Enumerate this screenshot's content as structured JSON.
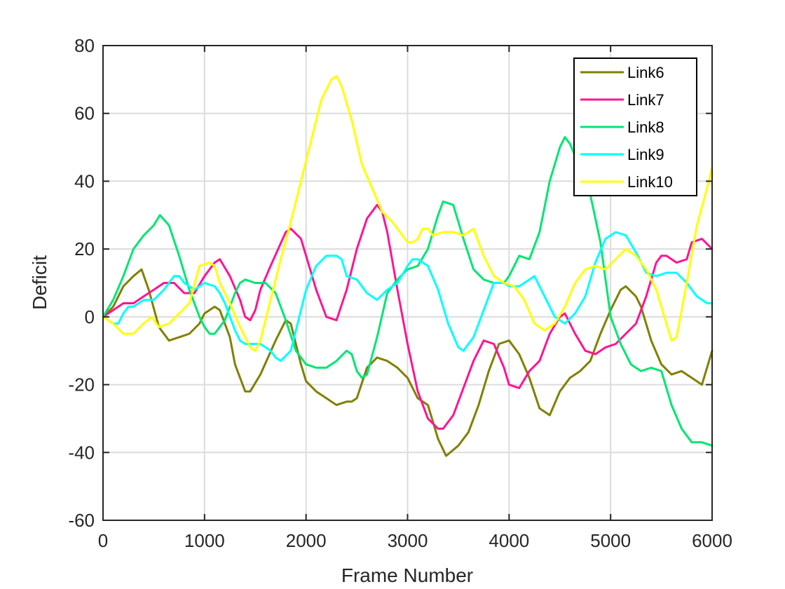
{
  "chart_data": {
    "type": "line",
    "title": "",
    "xlabel": "Frame Number",
    "ylabel": "Deficit",
    "xlim": [
      0,
      6000
    ],
    "ylim": [
      -60,
      80
    ],
    "xticks": [
      0,
      1000,
      2000,
      3000,
      4000,
      5000,
      6000
    ],
    "yticks": [
      -60,
      -40,
      -20,
      0,
      20,
      40,
      60,
      80
    ],
    "grid": true,
    "legend_position": "top-right",
    "series": [
      {
        "name": "Link6",
        "color": "#808000",
        "x": [
          0,
          100,
          200,
          300,
          380,
          450,
          550,
          650,
          750,
          850,
          950,
          1000,
          1100,
          1150,
          1250,
          1300,
          1400,
          1450,
          1550,
          1700,
          1800,
          1850,
          1950,
          2000,
          2100,
          2200,
          2300,
          2400,
          2450,
          2500,
          2600,
          2700,
          2800,
          2900,
          3000,
          3100,
          3200,
          3300,
          3380,
          3500,
          3600,
          3700,
          3800,
          3900,
          4000,
          4100,
          4200,
          4300,
          4400,
          4500,
          4600,
          4700,
          4800,
          4900,
          5000,
          5100,
          5150,
          5250,
          5300,
          5400,
          5500,
          5600,
          5700,
          5800,
          5900,
          6000
        ],
        "values": [
          0,
          3,
          9,
          12,
          14,
          8,
          -3,
          -7,
          -6,
          -5,
          -2,
          1,
          3,
          2,
          -6,
          -14,
          -22,
          -22,
          -17,
          -7,
          -1,
          -2,
          -14,
          -19,
          -22,
          -24,
          -26,
          -25,
          -25,
          -24,
          -15,
          -12,
          -13,
          -15,
          -18,
          -24,
          -26,
          -36,
          -41,
          -38,
          -34,
          -26,
          -16,
          -8,
          -7,
          -11,
          -18,
          -27,
          -29,
          -22,
          -18,
          -16,
          -13,
          -5,
          2,
          8,
          9,
          6,
          3,
          -7,
          -14,
          -17,
          -16,
          -18,
          -20,
          -10
        ]
      },
      {
        "name": "Link7",
        "color": "#ff1493",
        "x": [
          0,
          100,
          200,
          300,
          400,
          500,
          600,
          700,
          800,
          900,
          1000,
          1100,
          1150,
          1250,
          1350,
          1400,
          1450,
          1500,
          1550,
          1650,
          1800,
          1850,
          1950,
          2000,
          2100,
          2200,
          2300,
          2400,
          2500,
          2600,
          2700,
          2750,
          2800,
          2900,
          3000,
          3100,
          3200,
          3300,
          3350,
          3450,
          3550,
          3650,
          3750,
          3850,
          3950,
          4000,
          4100,
          4200,
          4300,
          4400,
          4500,
          4550,
          4650,
          4750,
          4850,
          4950,
          5050,
          5150,
          5250,
          5350,
          5450,
          5500,
          5550,
          5650,
          5750,
          5800,
          5900,
          6000
        ],
        "values": [
          0,
          2,
          4,
          4,
          6,
          8,
          10,
          10,
          7,
          7,
          12,
          16,
          17,
          12,
          5,
          0,
          -1,
          2,
          8,
          15,
          25,
          26,
          23,
          18,
          8,
          0,
          -1,
          8,
          20,
          29,
          33,
          31,
          25,
          8,
          -8,
          -22,
          -30,
          -33,
          -33,
          -29,
          -21,
          -13,
          -7,
          -8,
          -15,
          -20,
          -21,
          -16,
          -13,
          -5,
          0,
          1,
          -5,
          -10,
          -11,
          -9,
          -8,
          -5,
          -2,
          6,
          16,
          18,
          18,
          16,
          17,
          22,
          23,
          20
        ]
      },
      {
        "name": "Link8",
        "color": "#00e673",
        "x": [
          0,
          100,
          200,
          300,
          400,
          500,
          560,
          650,
          750,
          850,
          950,
          1000,
          1050,
          1100,
          1200,
          1300,
          1350,
          1400,
          1500,
          1600,
          1700,
          1800,
          1900,
          2000,
          2100,
          2200,
          2300,
          2400,
          2450,
          2500,
          2550,
          2600,
          2700,
          2800,
          2900,
          3000,
          3100,
          3200,
          3300,
          3350,
          3450,
          3550,
          3650,
          3750,
          3850,
          3950,
          4000,
          4100,
          4200,
          4300,
          4400,
          4500,
          4550,
          4600,
          4700,
          4800,
          4900,
          5000,
          5100,
          5200,
          5300,
          5400,
          5500,
          5600,
          5700,
          5800,
          5900,
          6000
        ],
        "values": [
          0,
          5,
          12,
          20,
          24,
          27,
          30,
          27,
          18,
          8,
          0,
          -3,
          -5,
          -5,
          -1,
          7,
          10,
          11,
          10,
          10,
          7,
          -1,
          -10,
          -14,
          -15,
          -15,
          -13,
          -10,
          -11,
          -16,
          -18,
          -17,
          -6,
          7,
          11,
          14,
          15,
          20,
          30,
          34,
          33,
          23,
          14,
          11,
          10,
          10,
          12,
          18,
          17,
          25,
          40,
          50,
          53,
          51,
          44,
          36,
          22,
          0,
          -8,
          -14,
          -16,
          -15,
          -16,
          -26,
          -33,
          -37,
          -37,
          -38
        ]
      },
      {
        "name": "Link9",
        "color": "#00ffff",
        "x": [
          0,
          100,
          150,
          200,
          250,
          300,
          400,
          500,
          600,
          650,
          700,
          750,
          800,
          900,
          1000,
          1100,
          1150,
          1200,
          1300,
          1350,
          1400,
          1500,
          1550,
          1650,
          1700,
          1750,
          1850,
          1950,
          2000,
          2100,
          2200,
          2300,
          2350,
          2400,
          2500,
          2600,
          2700,
          2800,
          2900,
          3000,
          3050,
          3100,
          3200,
          3300,
          3400,
          3500,
          3550,
          3650,
          3750,
          3850,
          3950,
          4000,
          4100,
          4200,
          4250,
          4350,
          4450,
          4550,
          4650,
          4750,
          4850,
          4950,
          5050,
          5150,
          5250,
          5350,
          5450,
          5550,
          5650,
          5750,
          5850,
          5950,
          6000
        ],
        "values": [
          0,
          -2,
          -2,
          1,
          3,
          3,
          5,
          5,
          8,
          10,
          12,
          12,
          10,
          8,
          10,
          9,
          7,
          4,
          -4,
          -7,
          -8,
          -8,
          -8,
          -10,
          -12,
          -13,
          -10,
          2,
          8,
          15,
          18,
          18,
          17,
          12,
          11,
          7,
          5,
          8,
          10,
          15,
          17,
          17,
          15,
          8,
          -2,
          -9,
          -10,
          -6,
          2,
          10,
          10,
          9,
          9,
          11,
          12,
          6,
          0,
          -2,
          1,
          6,
          16,
          23,
          25,
          24,
          19,
          13,
          12,
          13,
          13,
          10,
          6,
          4,
          4
        ]
      },
      {
        "name": "Link10",
        "color": "#ffff00",
        "x": [
          0,
          100,
          200,
          300,
          400,
          480,
          550,
          650,
          750,
          850,
          950,
          1050,
          1100,
          1150,
          1250,
          1350,
          1450,
          1500,
          1550,
          1650,
          1750,
          1850,
          1950,
          2050,
          2150,
          2250,
          2300,
          2350,
          2450,
          2550,
          2650,
          2750,
          2850,
          2950,
          3000,
          3050,
          3100,
          3150,
          3200,
          3250,
          3350,
          3450,
          3550,
          3650,
          3750,
          3850,
          3950,
          4050,
          4150,
          4250,
          4350,
          4450,
          4550,
          4650,
          4750,
          4850,
          4950,
          5050,
          5150,
          5250,
          5350,
          5450,
          5550,
          5600,
          5650,
          5750,
          5850,
          5950,
          6000
        ],
        "values": [
          0,
          -2,
          -5,
          -5,
          -2,
          0,
          -3,
          -2,
          1,
          4,
          15,
          16,
          15,
          10,
          4,
          -3,
          -9,
          -10,
          -7,
          5,
          17,
          28,
          40,
          52,
          64,
          70,
          71,
          68,
          58,
          45,
          38,
          31,
          28,
          24,
          22,
          22,
          23,
          26,
          26,
          24,
          25,
          25,
          24,
          26,
          18,
          12,
          10,
          9,
          5,
          -2,
          -4,
          -2,
          3,
          10,
          14,
          15,
          14,
          17,
          20,
          18,
          14,
          8,
          -2,
          -7,
          -6,
          10,
          27,
          38,
          44
        ]
      }
    ]
  }
}
